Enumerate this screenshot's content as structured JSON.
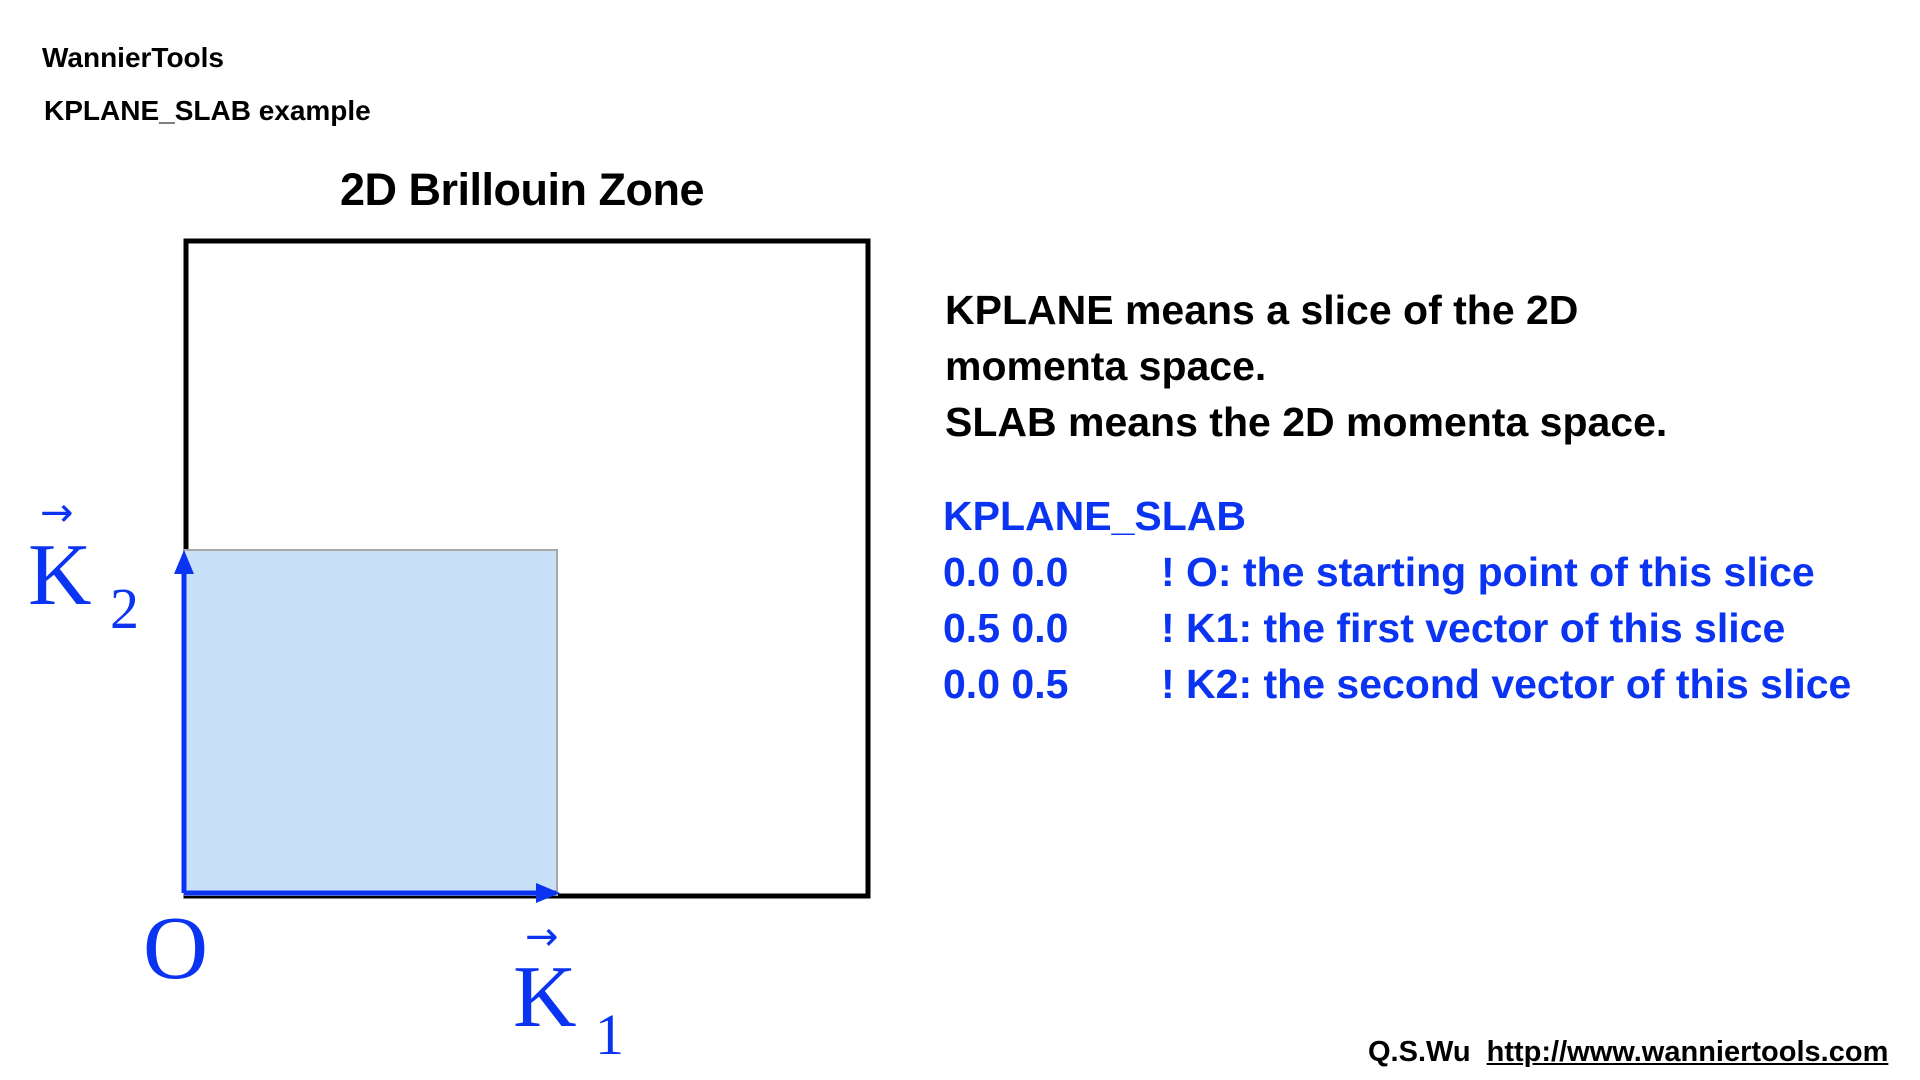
{
  "header": {
    "app_title": "WannierTools",
    "subtitle": "KPLANE_SLAB example"
  },
  "diagram": {
    "title": "2D Brillouin Zone",
    "origin_label": "O",
    "k1_label": "K",
    "k1_subscript": "1",
    "k1_arrow": "→",
    "k2_label": "K",
    "k2_subscript": "2",
    "k2_arrow": "→",
    "colors": {
      "zone_border": "#000000",
      "slice_fill": "#c7e0f8",
      "slice_border": "#a8a8a8",
      "vector": "#0a33f2"
    }
  },
  "description": {
    "line1": "KPLANE means a slice of the 2D",
    "line2": "momenta space.",
    "line3": "SLAB means the 2D momenta space."
  },
  "code_block": {
    "keyword": "KPLANE_SLAB",
    "rows": [
      {
        "values": "0.0 0.0",
        "comment": "! O: the starting point of this slice"
      },
      {
        "values": "0.5 0.0",
        "comment": "! K1: the first vector of this slice"
      },
      {
        "values": "0.0 0.5",
        "comment": "! K2: the second vector of this slice"
      }
    ]
  },
  "footer": {
    "author": "Q.S.Wu",
    "url": "http://www.wanniertools.com"
  }
}
